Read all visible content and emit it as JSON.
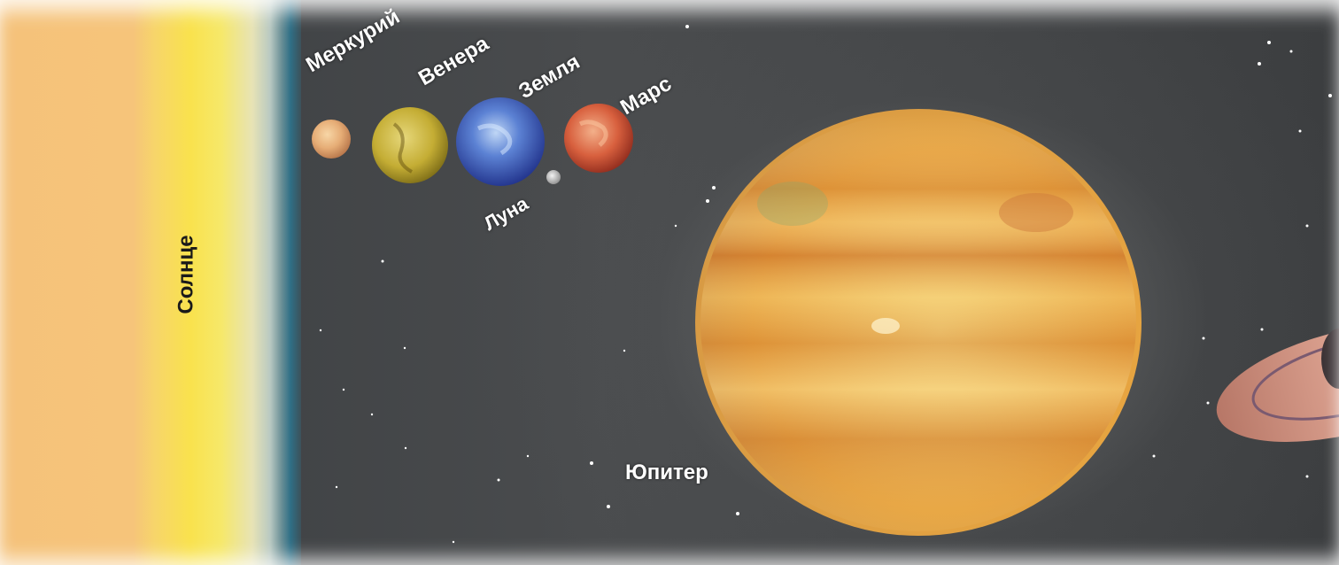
{
  "labels": {
    "sun": "Солнце",
    "mercury": "Меркурий",
    "venus": "Венера",
    "earth": "Земля",
    "mars": "Марс",
    "moon": "Луна",
    "jupiter": "Юпитер"
  },
  "colors": {
    "space": "#3c3e40",
    "sun": "#f5c27a",
    "sun_core": "#f9e24d",
    "mercury": "#e8b07a",
    "venus": "#c9b43a",
    "earth": "#3c56b8",
    "mars": "#d8603e",
    "moon": "#c8c8c8",
    "jupiter": "#e9a640",
    "saturn": "#cf9585"
  }
}
